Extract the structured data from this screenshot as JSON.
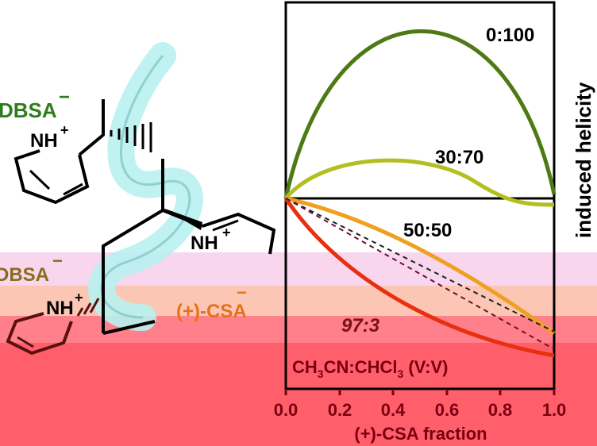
{
  "molecule": {
    "counterion_top": "DBSA",
    "counterion_top_charge": "−",
    "pyridinium_top": "NH",
    "pyridinium_top_charge": "+",
    "pyridinium_mid": "NH",
    "pyridinium_mid_charge": "+",
    "counterion_mid": "DBSA",
    "counterion_mid_charge": "−",
    "acid_label": "(+)-CSA",
    "acid_charge": "−",
    "pyridinium_low": "NH",
    "pyridinium_low_charge": "+"
  },
  "plot": {
    "y_label": "induced helicity",
    "x_label": "(+)-CSA  fraction",
    "x_ticks": [
      "0.0",
      "0.2",
      "0.4",
      "0.6",
      "0.8",
      "1.0"
    ],
    "solvent_label_prefix": "CH",
    "solvent_label_sub1": "3",
    "solvent_label_mid": "CN:CHCl",
    "solvent_label_sub2": "3",
    "solvent_label_suffix": " (V:V)",
    "curves": [
      {
        "label": "0:100",
        "color": "#4d7a14"
      },
      {
        "label": "30:70",
        "color": "#b3be20"
      },
      {
        "label": "50:50",
        "color": "#f0a020"
      },
      {
        "label": "97:3",
        "color": "#e83010"
      }
    ]
  }
}
